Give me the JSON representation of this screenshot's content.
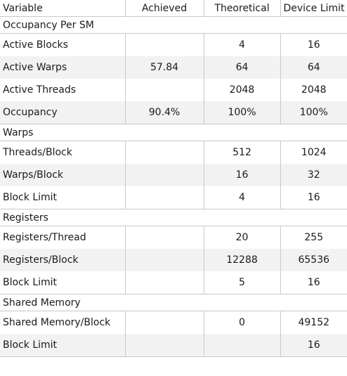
{
  "header": {
    "variable": "Variable",
    "achieved": "Achieved",
    "theoretical": "Theoretical",
    "device_limit": "Device Limit"
  },
  "sections": [
    {
      "title": "Occupancy Per SM",
      "rows": [
        {
          "variable": "Active Blocks",
          "achieved": "",
          "theoretical": "4",
          "device_limit": "16"
        },
        {
          "variable": "Active Warps",
          "achieved": "57.84",
          "theoretical": "64",
          "device_limit": "64"
        },
        {
          "variable": "Active Threads",
          "achieved": "",
          "theoretical": "2048",
          "device_limit": "2048"
        },
        {
          "variable": "Occupancy",
          "achieved": "90.4%",
          "theoretical": "100%",
          "device_limit": "100%"
        }
      ]
    },
    {
      "title": "Warps",
      "rows": [
        {
          "variable": "Threads/Block",
          "achieved": "",
          "theoretical": "512",
          "device_limit": "1024"
        },
        {
          "variable": "Warps/Block",
          "achieved": "",
          "theoretical": "16",
          "device_limit": "32"
        },
        {
          "variable": "Block Limit",
          "achieved": "",
          "theoretical": "4",
          "device_limit": "16"
        }
      ]
    },
    {
      "title": "Registers",
      "rows": [
        {
          "variable": "Registers/Thread",
          "achieved": "",
          "theoretical": "20",
          "device_limit": "255"
        },
        {
          "variable": "Registers/Block",
          "achieved": "",
          "theoretical": "12288",
          "device_limit": "65536"
        },
        {
          "variable": "Block Limit",
          "achieved": "",
          "theoretical": "5",
          "device_limit": "16"
        }
      ]
    },
    {
      "title": "Shared Memory",
      "rows": [
        {
          "variable": "Shared Memory/Block",
          "achieved": "",
          "theoretical": "0",
          "device_limit": "49152"
        },
        {
          "variable": "Block Limit",
          "achieved": "",
          "theoretical": "",
          "device_limit": "16"
        }
      ]
    }
  ]
}
